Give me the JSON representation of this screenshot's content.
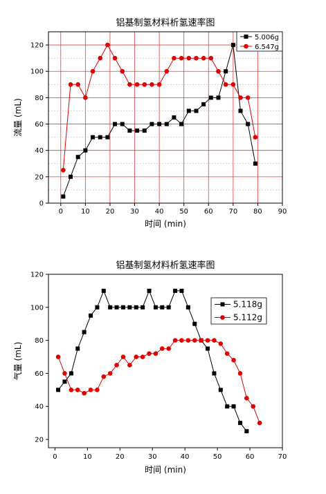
{
  "chart_data": [
    {
      "type": "line",
      "title": "铝基制氢材料析氢速率图",
      "xlabel": "时间 (min)",
      "ylabel": "流量 (mL)",
      "xlim": [
        -5,
        90
      ],
      "ylim": [
        0,
        130
      ],
      "xticks": [
        0,
        10,
        20,
        30,
        40,
        50,
        60,
        70,
        80,
        90
      ],
      "yticks": [
        0,
        20,
        40,
        60,
        80,
        100,
        120
      ],
      "grid": true,
      "grid_color": "#e03c3c",
      "legend_position": "top-right",
      "series": [
        {
          "name": "5.006g",
          "color": "#000000",
          "marker": "square",
          "x": [
            1,
            4,
            7,
            10,
            13,
            16,
            19,
            22,
            25,
            28,
            31,
            34,
            37,
            40,
            43,
            46,
            49,
            52,
            55,
            58,
            61,
            64,
            67,
            70,
            73,
            76,
            79
          ],
          "y": [
            5,
            20,
            35,
            40,
            50,
            50,
            50,
            60,
            60,
            55,
            55,
            55,
            60,
            60,
            60,
            65,
            60,
            70,
            70,
            75,
            80,
            80,
            100,
            120,
            70,
            60,
            30
          ]
        },
        {
          "name": "6.547g",
          "color": "#e00000",
          "marker": "circle",
          "x": [
            1,
            4,
            7,
            10,
            13,
            16,
            19,
            22,
            25,
            28,
            31,
            34,
            37,
            40,
            43,
            46,
            49,
            52,
            55,
            58,
            61,
            64,
            67,
            70,
            73,
            76,
            79
          ],
          "y": [
            25,
            90,
            90,
            80,
            100,
            110,
            120,
            110,
            100,
            90,
            90,
            90,
            90,
            90,
            100,
            110,
            110,
            110,
            110,
            110,
            110,
            100,
            90,
            90,
            80,
            80,
            50
          ]
        }
      ]
    },
    {
      "type": "line",
      "title": "铝基制氢材料析氢速率图",
      "xlabel": "时间 (min)",
      "ylabel": "气量 (mL)",
      "xlim": [
        -2,
        70
      ],
      "ylim": [
        15,
        120
      ],
      "xticks": [
        0,
        10,
        20,
        30,
        40,
        50,
        60,
        70
      ],
      "yticks": [
        20,
        40,
        60,
        80,
        100,
        120
      ],
      "grid": false,
      "legend_position": "top-right",
      "series": [
        {
          "name": "5.118g",
          "color": "#000000",
          "marker": "square",
          "x": [
            1,
            3,
            5,
            7,
            9,
            11,
            13,
            15,
            17,
            19,
            21,
            23,
            25,
            27,
            29,
            31,
            33,
            35,
            37,
            39,
            41,
            43,
            45,
            47,
            49,
            51,
            53,
            55,
            57,
            59
          ],
          "y": [
            50,
            55,
            60,
            75,
            85,
            95,
            100,
            110,
            100,
            100,
            100,
            100,
            100,
            100,
            110,
            100,
            100,
            100,
            110,
            110,
            100,
            90,
            80,
            75,
            60,
            50,
            40,
            40,
            30,
            25
          ]
        },
        {
          "name": "5.112g",
          "color": "#e00000",
          "marker": "circle",
          "x": [
            1,
            3,
            5,
            7,
            9,
            11,
            13,
            15,
            17,
            19,
            21,
            23,
            25,
            27,
            29,
            31,
            33,
            35,
            37,
            39,
            41,
            43,
            45,
            47,
            49,
            51,
            53,
            55,
            57,
            59,
            61,
            63
          ],
          "y": [
            70,
            60,
            50,
            50,
            48,
            50,
            50,
            58,
            60,
            65,
            70,
            65,
            70,
            70,
            72,
            72,
            75,
            75,
            80,
            80,
            80,
            80,
            80,
            80,
            80,
            78,
            72,
            68,
            60,
            45,
            40,
            30
          ]
        }
      ]
    }
  ]
}
